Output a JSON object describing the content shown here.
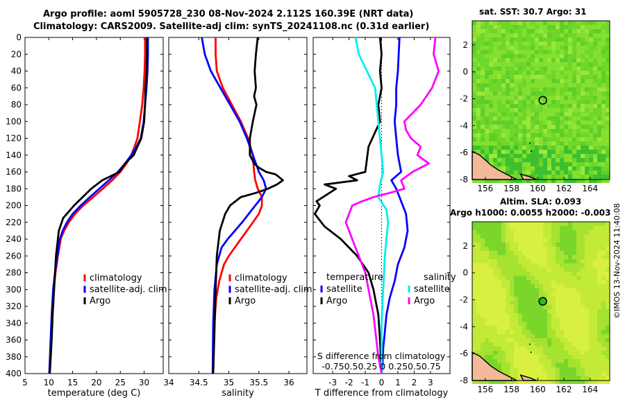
{
  "header": {
    "line1": "Argo profile: aoml 5905728_230 08-Nov-2024 2.112S 160.39E (NRT data)",
    "line2": "Climatology: CARS2009. Satellite-adj clim: synTS_20241108.nc (0.31d earlier)"
  },
  "colors": {
    "clim": "#ff0000",
    "sat": "#0000ff",
    "argo": "#000000",
    "sat_s": "#00eeee",
    "argo_s": "#ff00ff",
    "map_green": "#7ddc2a",
    "land": "#f4b89a"
  },
  "chart_data": [
    {
      "type": "line",
      "id": "temperature",
      "xlabel": "temperature (deg C)",
      "ylabel": "",
      "xlim": [
        5,
        34
      ],
      "ylim": [
        0,
        400
      ],
      "xticks": [
        "5",
        "10",
        "15",
        "20",
        "25",
        "30"
      ],
      "xtick_values": [
        5,
        10,
        15,
        20,
        25,
        30
      ],
      "yticks": [
        "0",
        "20",
        "40",
        "60",
        "80",
        "100",
        "120",
        "140",
        "160",
        "180",
        "200",
        "220",
        "240",
        "260",
        "280",
        "300",
        "320",
        "340",
        "360",
        "380",
        "400"
      ],
      "series": [
        {
          "name": "climatology",
          "color": "red",
          "x": [
            30.2,
            30.2,
            30.1,
            29.9,
            29.6,
            29.1,
            28.6,
            28.0,
            27.3,
            26.3,
            25.0,
            23.3,
            21.3,
            19.3,
            17.2,
            15.5,
            14.2,
            13.2,
            12.5,
            11.9,
            11.4,
            11.0,
            10.7,
            10.4,
            10.1
          ],
          "y": [
            0,
            20,
            40,
            60,
            80,
            100,
            120,
            130,
            140,
            150,
            160,
            170,
            180,
            190,
            200,
            210,
            220,
            230,
            240,
            260,
            280,
            300,
            330,
            370,
            400
          ]
        },
        {
          "name": "satellite-adj. clim",
          "color": "blue",
          "x": [
            30.8,
            30.8,
            30.7,
            30.5,
            30.2,
            29.9,
            29.3,
            28.4,
            27.3,
            26.0,
            24.5,
            22.6,
            20.6,
            18.6,
            16.7,
            15.0,
            13.8,
            12.9,
            12.3,
            11.8,
            11.3,
            10.9,
            10.6,
            10.3,
            10.1
          ],
          "y": [
            0,
            20,
            40,
            60,
            80,
            100,
            120,
            130,
            140,
            150,
            160,
            170,
            180,
            190,
            200,
            210,
            220,
            230,
            240,
            260,
            280,
            300,
            330,
            370,
            400
          ]
        },
        {
          "name": "Argo",
          "color": "black",
          "x": [
            30.6,
            30.6,
            30.5,
            30.3,
            30.2,
            30.0,
            29.4,
            27.8,
            26.0,
            24.8,
            23.0,
            21.2,
            18.9,
            15.3,
            13.0,
            12.1,
            11.5,
            11.1,
            10.8,
            10.6,
            10.4,
            10.2
          ],
          "y": [
            0,
            20,
            40,
            60,
            80,
            100,
            120,
            140,
            150,
            160,
            165,
            170,
            180,
            200,
            215,
            230,
            260,
            300,
            330,
            360,
            380,
            400
          ]
        }
      ],
      "legend": {
        "position": "bottom-right",
        "entries": [
          "climatology",
          "satellite-adj. clim",
          "Argo"
        ]
      }
    },
    {
      "type": "line",
      "id": "salinity",
      "xlabel": "salinity",
      "xlim": [
        34,
        36.3
      ],
      "ylim": [
        0,
        400
      ],
      "xticks": [
        "34",
        "34.5",
        "35",
        "35.5",
        "36"
      ],
      "xtick_values": [
        34,
        34.5,
        35,
        35.5,
        36
      ],
      "series": [
        {
          "name": "climatology",
          "color": "red",
          "x": [
            34.78,
            34.78,
            34.8,
            34.9,
            35.05,
            35.2,
            35.32,
            35.4,
            35.42,
            35.44,
            35.48,
            35.55,
            35.55,
            35.5,
            35.4,
            35.3,
            35.2,
            35.1,
            35.0,
            34.92,
            34.84,
            34.79,
            34.76,
            34.75,
            34.74
          ],
          "y": [
            0,
            20,
            40,
            60,
            80,
            100,
            120,
            140,
            160,
            170,
            180,
            190,
            200,
            210,
            220,
            230,
            240,
            250,
            260,
            270,
            290,
            310,
            340,
            370,
            400
          ]
        },
        {
          "name": "satellite-adj. clim",
          "color": "blue",
          "x": [
            34.55,
            34.6,
            34.7,
            34.86,
            35.02,
            35.18,
            35.3,
            35.4,
            35.45,
            35.5,
            35.58,
            35.62,
            35.55,
            35.44,
            35.33,
            35.22,
            35.1,
            34.98,
            34.88,
            34.8,
            34.76,
            34.74,
            34.73
          ],
          "y": [
            0,
            20,
            40,
            60,
            80,
            100,
            120,
            140,
            150,
            160,
            170,
            180,
            190,
            200,
            210,
            220,
            230,
            240,
            250,
            270,
            300,
            340,
            400
          ]
        },
        {
          "name": "Argo",
          "color": "black",
          "x": [
            35.48,
            35.45,
            35.43,
            35.45,
            35.42,
            35.46,
            35.4,
            35.35,
            35.35,
            35.42,
            35.5,
            35.62,
            35.78,
            35.9,
            35.8,
            35.65,
            35.45,
            35.2,
            35.02,
            34.94,
            34.85,
            34.8,
            34.78,
            34.76,
            34.74
          ],
          "y": [
            0,
            20,
            40,
            60,
            70,
            80,
            100,
            120,
            140,
            150,
            155,
            160,
            163,
            170,
            175,
            180,
            185,
            190,
            200,
            210,
            230,
            260,
            300,
            350,
            400
          ]
        }
      ],
      "legend": {
        "position": "bottom-right",
        "entries": [
          "climatology",
          "satellite-adj. clim",
          "Argo"
        ]
      }
    },
    {
      "type": "line",
      "id": "difference",
      "xlabel": "T difference from climatology",
      "top_label": "S difference from climatology",
      "top_ticks": "-0.750.50.25 0 0.250.50.75",
      "xlim": [
        -4.2,
        4.2
      ],
      "ylim": [
        0,
        400
      ],
      "xticks": [
        "-3",
        "-2",
        "-1",
        "0",
        "1",
        "2",
        "3"
      ],
      "xtick_values": [
        -3,
        -2,
        -1,
        0,
        1,
        2,
        3
      ],
      "series": [
        {
          "name": "temperature satellite",
          "color": "blue",
          "x": [
            1.1,
            1.05,
            1.0,
            0.9,
            0.9,
            0.8,
            0.9,
            1.0,
            1.1,
            1.2,
            0.6,
            0.9,
            1.1,
            1.3,
            1.5,
            1.6,
            1.4,
            1.0,
            0.8,
            0.5,
            0.3,
            0.2,
            0.1,
            0.05,
            0.0
          ],
          "y": [
            0,
            20,
            40,
            60,
            80,
            100,
            120,
            140,
            150,
            160,
            170,
            180,
            190,
            200,
            210,
            230,
            250,
            270,
            290,
            310,
            330,
            350,
            370,
            390,
            400
          ]
        },
        {
          "name": "temperature Argo",
          "color": "black",
          "x": [
            -0.1,
            0.0,
            -0.1,
            0.0,
            -0.2,
            -0.1,
            -0.8,
            -1.0,
            -2.0,
            -1.5,
            -3.5,
            -2.8,
            -4.0,
            -3.8,
            -4.1,
            -3.5,
            -2.5,
            -1.5,
            -0.8,
            -0.5,
            -0.2,
            -0.1,
            0.0
          ],
          "y": [
            0,
            20,
            40,
            60,
            80,
            100,
            130,
            160,
            165,
            170,
            175,
            180,
            195,
            200,
            210,
            225,
            240,
            260,
            280,
            300,
            330,
            360,
            400
          ]
        },
        {
          "name": "salinity satellite",
          "color": "cyan",
          "x": [
            -1.6,
            -1.4,
            -0.9,
            -0.4,
            -0.3,
            -0.2,
            -0.1,
            0.0,
            0.1,
            -0.1,
            -0.2,
            0.3,
            0.4,
            0.3,
            0.2,
            0.1,
            0.0,
            0.0,
            0.0
          ],
          "y": [
            0,
            20,
            40,
            60,
            80,
            100,
            120,
            140,
            160,
            175,
            190,
            205,
            220,
            240,
            260,
            300,
            340,
            370,
            400
          ]
        },
        {
          "name": "salinity Argo",
          "color": "magenta",
          "x": [
            3.3,
            3.2,
            3.5,
            3.1,
            2.4,
            1.4,
            1.5,
            1.8,
            2.4,
            2.2,
            2.9,
            1.9,
            1.2,
            1.4,
            0.5,
            -0.5,
            -1.2,
            -1.8,
            -2.2,
            -2.0,
            -1.0,
            -0.5,
            -0.2,
            0.0
          ],
          "y": [
            0,
            20,
            40,
            60,
            80,
            100,
            110,
            120,
            130,
            140,
            150,
            160,
            170,
            180,
            185,
            190,
            195,
            200,
            220,
            230,
            280,
            330,
            380,
            400
          ]
        }
      ],
      "legend": {
        "position": "bottom",
        "entries": [
          "temperature",
          "satellite",
          "Argo",
          "salinity",
          "satellite",
          "Argo"
        ]
      }
    },
    {
      "type": "heatmap",
      "id": "sst_map",
      "title": "sat. SST: 30.7 Argo: 31",
      "xlim": [
        155,
        165.5
      ],
      "ylim": [
        -8,
        3.8
      ],
      "xticks": [
        "156",
        "158",
        "160",
        "162",
        "164"
      ],
      "xtick_values": [
        156,
        158,
        160,
        162,
        164
      ],
      "yticks": [
        "-8",
        "-6",
        "-4",
        "-2",
        "0",
        "2"
      ],
      "ytick_values": [
        -8,
        -6,
        -4,
        -2,
        0,
        2
      ],
      "argo_marker": {
        "lon": 160.39,
        "lat": -2.112,
        "filled": false
      }
    },
    {
      "type": "heatmap",
      "id": "sla_map",
      "title": "Altim. SLA: 0.093",
      "subtitle": "Argo h1000: 0.0055 h2000: -0.003",
      "xlim": [
        155,
        165.5
      ],
      "ylim": [
        -8,
        3.8
      ],
      "xticks": [
        "156",
        "158",
        "160",
        "162",
        "164"
      ],
      "xtick_values": [
        156,
        158,
        160,
        162,
        164
      ],
      "yticks": [
        "-8",
        "-6",
        "-4",
        "-2",
        "0",
        "2"
      ],
      "ytick_values": [
        -8,
        -6,
        -4,
        -2,
        0,
        2
      ],
      "argo_marker": {
        "lon": 160.39,
        "lat": -2.112,
        "filled": true
      }
    }
  ],
  "stamp": "©IMOS 13-Nov-2024 11:40:08"
}
